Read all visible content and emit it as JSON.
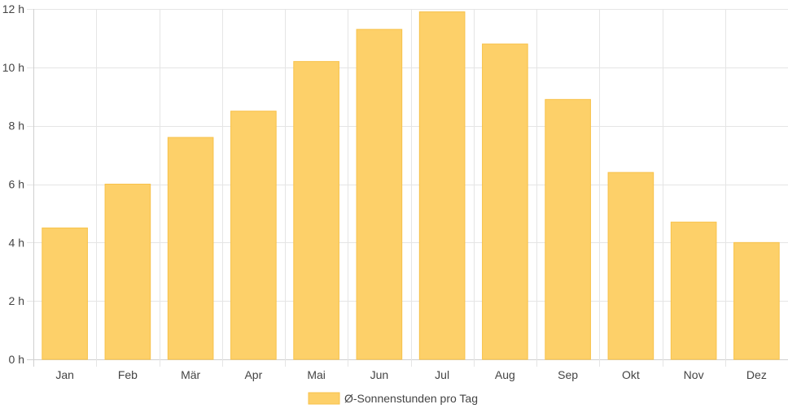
{
  "chart_data": {
    "type": "bar",
    "categories": [
      "Jan",
      "Feb",
      "Mär",
      "Apr",
      "Mai",
      "Jun",
      "Jul",
      "Aug",
      "Sep",
      "Okt",
      "Nov",
      "Dez"
    ],
    "series": [
      {
        "name": "Ø-Sonnenstunden pro Tag",
        "values": [
          4.5,
          6.0,
          7.6,
          8.5,
          10.2,
          11.3,
          11.9,
          10.8,
          8.9,
          6.4,
          4.7,
          4.0
        ]
      }
    ],
    "y_ticks": [
      0,
      2,
      4,
      6,
      8,
      10,
      12
    ],
    "y_tick_suffix": " h",
    "ylim": [
      0,
      12
    ],
    "title": "",
    "xlabel": "",
    "ylabel": "",
    "grid": true,
    "legend_position": "bottom",
    "colors": {
      "bar_fill": "#fdd069",
      "bar_stroke": "#f8c24a"
    }
  }
}
